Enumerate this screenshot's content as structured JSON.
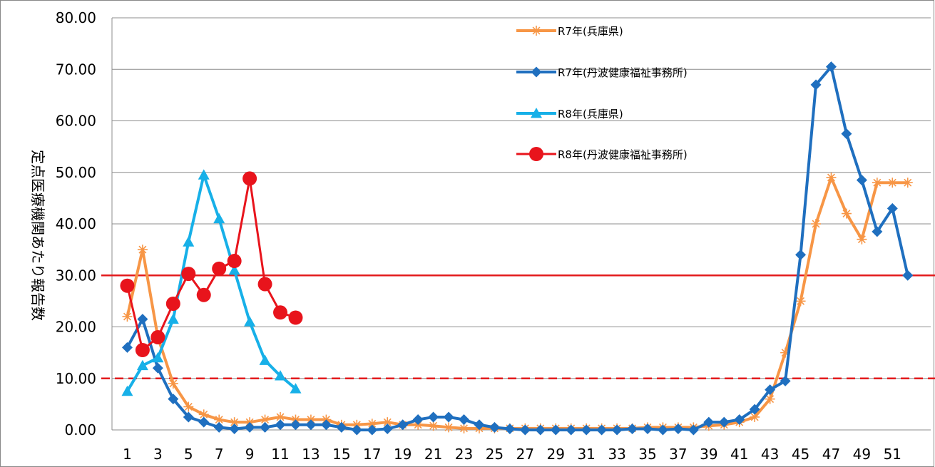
{
  "chart_data": {
    "type": "line",
    "title": "",
    "xlabel": "",
    "ylabel": "定点医療機関あたり報告数",
    "ylim": [
      0,
      80
    ],
    "y_ticks": [
      "0.00",
      "10.00",
      "20.00",
      "30.00",
      "40.00",
      "50.00",
      "60.00",
      "70.00",
      "80.00"
    ],
    "x_ticks": [
      "1",
      "3",
      "5",
      "7",
      "9",
      "11",
      "13",
      "15",
      "17",
      "19",
      "21",
      "23",
      "25",
      "27",
      "29",
      "31",
      "33",
      "35",
      "37",
      "39",
      "41",
      "43",
      "45",
      "47",
      "49",
      "51"
    ],
    "grid": "horizontal",
    "legend_position": "top-right",
    "reference_lines": [
      {
        "y": 30,
        "style": "solid",
        "color": "#e31a1c"
      },
      {
        "y": 10,
        "style": "dashed",
        "color": "#e31a1c"
      }
    ],
    "series": [
      {
        "name": "R7年(兵庫県)",
        "color": "#f79646",
        "marker": "star",
        "x": [
          1,
          2,
          3,
          4,
          5,
          6,
          7,
          8,
          9,
          10,
          11,
          12,
          13,
          14,
          15,
          16,
          17,
          18,
          19,
          20,
          21,
          22,
          23,
          24,
          25,
          26,
          27,
          28,
          29,
          30,
          31,
          32,
          33,
          34,
          35,
          36,
          37,
          38,
          39,
          40,
          41,
          42,
          43,
          44,
          45,
          46,
          47,
          48,
          49,
          50,
          51,
          52
        ],
        "values": [
          22.0,
          35.0,
          18.0,
          9.0,
          4.5,
          3.0,
          2.0,
          1.5,
          1.5,
          2.0,
          2.5,
          2.0,
          2.0,
          2.0,
          1.0,
          1.0,
          1.2,
          1.5,
          1.0,
          1.0,
          0.8,
          0.5,
          0.3,
          0.3,
          0.3,
          0.3,
          0.3,
          0.3,
          0.3,
          0.3,
          0.3,
          0.3,
          0.3,
          0.3,
          0.5,
          0.5,
          0.5,
          0.5,
          0.8,
          1.0,
          1.5,
          2.5,
          6.0,
          15.0,
          25.0,
          40.0,
          49.0,
          42.0,
          37.0,
          48.0,
          48.0,
          48.0
        ]
      },
      {
        "name": "R7年(丹波健康福祉事務所)",
        "color": "#1f6fbf",
        "marker": "diamond",
        "x": [
          1,
          2,
          3,
          4,
          5,
          6,
          7,
          8,
          9,
          10,
          11,
          12,
          13,
          14,
          15,
          16,
          17,
          18,
          19,
          20,
          21,
          22,
          23,
          24,
          25,
          26,
          27,
          28,
          29,
          30,
          31,
          32,
          33,
          34,
          35,
          36,
          37,
          38,
          39,
          40,
          41,
          42,
          43,
          44,
          45,
          46,
          47,
          48,
          49,
          50,
          51,
          52
        ],
        "values": [
          16.0,
          21.5,
          12.0,
          6.0,
          2.5,
          1.5,
          0.5,
          0.2,
          0.5,
          0.5,
          1.0,
          1.0,
          1.0,
          1.0,
          0.5,
          0.0,
          0.0,
          0.2,
          1.0,
          2.0,
          2.5,
          2.5,
          2.0,
          1.0,
          0.5,
          0.2,
          0.0,
          0.0,
          0.0,
          0.0,
          0.0,
          0.0,
          0.0,
          0.2,
          0.2,
          0.0,
          0.2,
          0.0,
          1.5,
          1.5,
          2.0,
          4.0,
          7.8,
          9.5,
          34.0,
          67.0,
          70.5,
          57.5,
          48.5,
          38.5,
          43.0,
          30.0
        ]
      },
      {
        "name": "R8年(兵庫県)",
        "color": "#17b0e8",
        "marker": "triangle",
        "x": [
          1,
          2,
          3,
          4,
          5,
          6,
          7,
          8,
          9,
          10,
          11,
          12
        ],
        "values": [
          7.5,
          12.5,
          14.0,
          21.5,
          36.5,
          49.5,
          41.0,
          31.0,
          21.0,
          13.5,
          10.5,
          8.0
        ]
      },
      {
        "name": "R8年(丹波健康福祉事務所)",
        "color": "#e8141c",
        "marker": "circle",
        "x": [
          1,
          2,
          3,
          4,
          5,
          6,
          7,
          8,
          9,
          10,
          11,
          12
        ],
        "values": [
          28.0,
          15.5,
          18.0,
          24.5,
          30.3,
          26.2,
          31.3,
          32.8,
          48.8,
          28.3,
          22.8,
          21.8
        ]
      }
    ]
  }
}
